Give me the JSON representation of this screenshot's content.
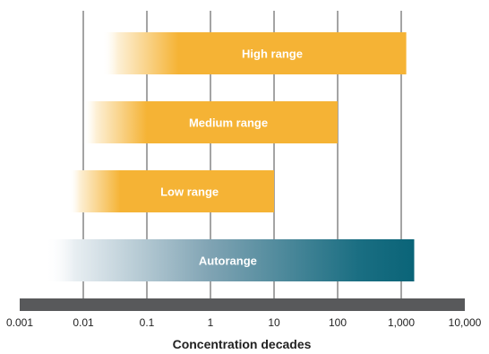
{
  "chart_data": {
    "type": "bar",
    "orientation": "horizontal",
    "xscale": "log",
    "xlabel": "Concentration decades",
    "xticks": [
      "0.001",
      "0.01",
      "0.1",
      "1",
      "10",
      "100",
      "1,000",
      "10,000"
    ],
    "xlim": [
      0.001,
      10000
    ],
    "grid": true,
    "bars": [
      {
        "label": "High range",
        "start": 0.02,
        "end": 1200,
        "color": "#F5B335"
      },
      {
        "label": "Medium range",
        "start": 0.01,
        "end": 100,
        "color": "#F5B335"
      },
      {
        "label": "Low range",
        "start": 0.006,
        "end": 10,
        "color": "#F5B335"
      },
      {
        "label": "Autorange",
        "start": 0.0025,
        "end": 1600,
        "color": "#0A6478"
      }
    ]
  }
}
